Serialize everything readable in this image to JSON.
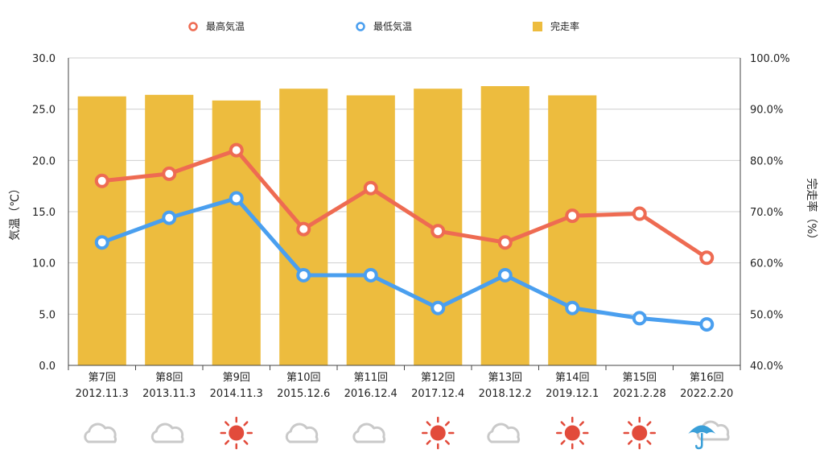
{
  "chart_data": {
    "type": "bar",
    "categories": [
      {
        "round": "第7回",
        "date": "2012.11.3"
      },
      {
        "round": "第8回",
        "date": "2013.11.3"
      },
      {
        "round": "第9回",
        "date": "2014.11.3"
      },
      {
        "round": "第10回",
        "date": "2015.12.6"
      },
      {
        "round": "第11回",
        "date": "2016.12.4"
      },
      {
        "round": "第12回",
        "date": "2017.12.4"
      },
      {
        "round": "第13回",
        "date": "2018.12.2"
      },
      {
        "round": "第14回",
        "date": "2019.12.1"
      },
      {
        "round": "第15回",
        "date": "2021.2.28"
      },
      {
        "round": "第16回",
        "date": "2022.2.20"
      }
    ],
    "series": [
      {
        "name": "最高気温",
        "kind": "line",
        "axis": "left",
        "color": "#EE6B52",
        "values": [
          18.0,
          18.7,
          21.0,
          13.3,
          17.3,
          13.1,
          12.0,
          14.6,
          14.8,
          10.5
        ]
      },
      {
        "name": "最低気温",
        "kind": "line",
        "axis": "left",
        "color": "#4A9FEF",
        "values": [
          12.0,
          14.4,
          16.3,
          8.8,
          8.8,
          5.6,
          8.8,
          5.6,
          4.6,
          4.0
        ]
      },
      {
        "name": "完走率",
        "kind": "bar",
        "axis": "right",
        "color": "#EDBC3E",
        "values": [
          92.5,
          92.8,
          91.7,
          94.0,
          92.7,
          94.0,
          94.5,
          92.7,
          null,
          null
        ]
      }
    ],
    "left_axis": {
      "label": "気温（℃）",
      "min": 0,
      "max": 30,
      "ticks": [
        "0.0",
        "5.0",
        "10.0",
        "15.0",
        "20.0",
        "25.0",
        "30.0"
      ]
    },
    "right_axis": {
      "label": "完走率（%）",
      "min": 40,
      "max": 100,
      "ticks": [
        "40.0%",
        "50.0%",
        "60.0%",
        "70.0%",
        "80.0%",
        "90.0%",
        "100.0%"
      ]
    },
    "grid": true,
    "legend_position": "top",
    "weather": [
      "cloud-icon",
      "cloud-icon",
      "sun-icon",
      "cloud-icon",
      "cloud-icon",
      "sun-icon",
      "cloud-icon",
      "sun-icon",
      "sun-icon",
      "umbrella-cloud-icon"
    ]
  }
}
